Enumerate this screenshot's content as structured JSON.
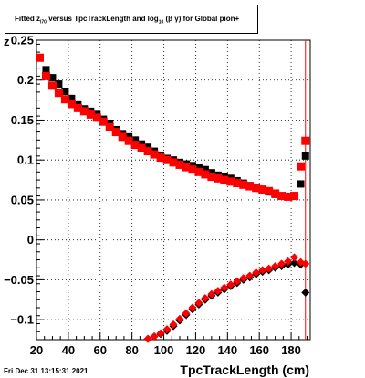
{
  "title": {
    "part1": "Fitted",
    "z_sym": "z",
    "z_sub": "l70",
    "part2": "versus TpcTrackLength and log",
    "log_sub": "10",
    "greek": "(β γ)",
    "part3": "for Global pion+"
  },
  "footer_date": "Fri Dec 31 13:15:31 2021",
  "colors": {
    "series_black": "#000000",
    "series_red": "#ff0000",
    "grid": "#000000"
  },
  "chart_data": {
    "type": "scatter",
    "title": "Fitted z_l70 versus TpcTrackLength and log10(β γ) for Global pion+",
    "xlabel": "TpcTrackLength (cm)",
    "ylabel": "z",
    "xlim": [
      20,
      192
    ],
    "ylim": [
      -0.125,
      0.25
    ],
    "xticks": [
      20,
      40,
      60,
      80,
      100,
      120,
      140,
      160,
      180
    ],
    "yticks": [
      -0.1,
      -0.05,
      0,
      0.05,
      0.1,
      0.15,
      0.2,
      0.25
    ],
    "ytick_labels": [
      "−0.1",
      "−0.05",
      "0",
      "0.05",
      "0.1",
      "0.15",
      "0.2",
      "0.25"
    ],
    "grid": true,
    "series": [
      {
        "marker": "square",
        "color": "#000000",
        "x": [
          22,
          26,
          30,
          34,
          38,
          42,
          46,
          50,
          54,
          58,
          62,
          66,
          70,
          74,
          78,
          82,
          86,
          90,
          94,
          98,
          102,
          106,
          110,
          114,
          118,
          122,
          126,
          130,
          134,
          138,
          142,
          146,
          150,
          154,
          158,
          162,
          166,
          170,
          174,
          178,
          182,
          186,
          189
        ],
        "y": [
          0.228,
          0.213,
          0.203,
          0.195,
          0.186,
          0.177,
          0.169,
          0.164,
          0.161,
          0.157,
          0.151,
          0.146,
          0.138,
          0.133,
          0.129,
          0.125,
          0.12,
          0.116,
          0.111,
          0.106,
          0.102,
          0.1,
          0.097,
          0.095,
          0.093,
          0.09,
          0.088,
          0.084,
          0.081,
          0.079,
          0.077,
          0.074,
          0.071,
          0.068,
          0.065,
          0.063,
          0.06,
          0.057,
          0.055,
          0.054,
          0.055,
          0.07,
          0.105
        ]
      },
      {
        "marker": "square",
        "color": "#ff0000",
        "x": [
          22,
          26,
          30,
          34,
          38,
          42,
          46,
          50,
          54,
          58,
          62,
          66,
          70,
          74,
          78,
          82,
          86,
          90,
          94,
          98,
          102,
          106,
          110,
          114,
          118,
          122,
          126,
          130,
          134,
          138,
          142,
          146,
          150,
          154,
          158,
          162,
          166,
          170,
          174,
          178,
          182,
          186,
          189
        ],
        "y": [
          0.228,
          0.205,
          0.193,
          0.184,
          0.176,
          0.17,
          0.165,
          0.161,
          0.157,
          0.153,
          0.148,
          0.141,
          0.135,
          0.129,
          0.124,
          0.119,
          0.115,
          0.111,
          0.107,
          0.103,
          0.1,
          0.097,
          0.094,
          0.091,
          0.088,
          0.085,
          0.082,
          0.079,
          0.077,
          0.075,
          0.073,
          0.071,
          0.069,
          0.067,
          0.065,
          0.063,
          0.061,
          0.058,
          0.055,
          0.054,
          0.055,
          0.092,
          0.124
        ]
      },
      {
        "marker": "diamond",
        "color": "#000000",
        "x": [
          90,
          94,
          98,
          102,
          106,
          110,
          114,
          118,
          122,
          126,
          130,
          134,
          138,
          142,
          146,
          150,
          154,
          158,
          162,
          166,
          170,
          174,
          178,
          182,
          186,
          189
        ],
        "y": [
          -0.124,
          -0.121,
          -0.118,
          -0.114,
          -0.108,
          -0.101,
          -0.094,
          -0.087,
          -0.081,
          -0.075,
          -0.07,
          -0.066,
          -0.062,
          -0.058,
          -0.054,
          -0.05,
          -0.047,
          -0.043,
          -0.04,
          -0.038,
          -0.035,
          -0.033,
          -0.031,
          -0.029,
          -0.031,
          -0.066
        ]
      },
      {
        "marker": "diamond",
        "color": "#ff0000",
        "x": [
          90,
          94,
          98,
          102,
          106,
          110,
          114,
          118,
          122,
          126,
          130,
          134,
          138,
          142,
          146,
          150,
          154,
          158,
          162,
          166,
          170,
          174,
          178,
          182,
          186,
          189
        ],
        "y": [
          -0.124,
          -0.121,
          -0.117,
          -0.112,
          -0.106,
          -0.099,
          -0.092,
          -0.085,
          -0.079,
          -0.073,
          -0.068,
          -0.064,
          -0.06,
          -0.056,
          -0.052,
          -0.048,
          -0.045,
          -0.041,
          -0.038,
          -0.036,
          -0.033,
          -0.03,
          -0.027,
          -0.022,
          -0.028,
          -0.03
        ]
      }
    ]
  }
}
